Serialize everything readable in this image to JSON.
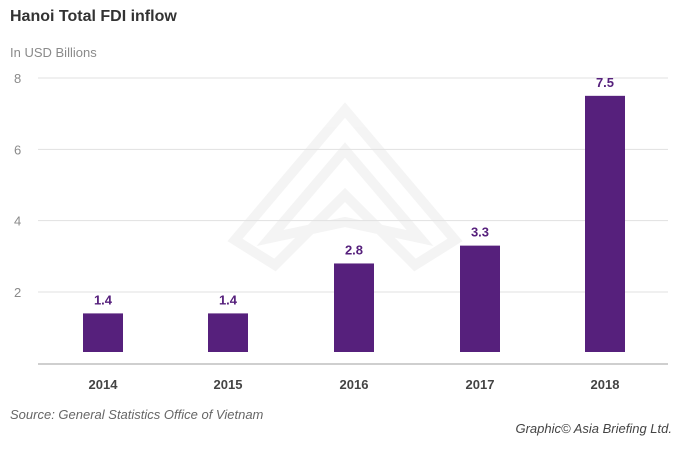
{
  "page": {
    "title": "Hanoi Total FDI inflow",
    "subtitle": "In USD Billions",
    "source": "Source: General Statistics Office of Vietnam",
    "credit": "Graphic© Asia Briefing Ltd."
  },
  "colors": {
    "bar": "#56207c",
    "label": "#56207c",
    "grid": "#e1e1e1",
    "axis": "#cfcfcf",
    "tick_text": "#8a8a8a",
    "category_text": "#444444"
  },
  "chart_data": {
    "type": "bar",
    "title": "Hanoi Total FDI inflow",
    "subtitle": "In USD Billions",
    "categories": [
      "2014",
      "2015",
      "2016",
      "2017",
      "2018"
    ],
    "values": [
      1.4,
      1.4,
      2.8,
      3.3,
      7.5
    ],
    "data_labels": [
      "1.4",
      "1.4",
      "2.8",
      "3.3",
      "7.5"
    ],
    "y_ticks": [
      2,
      4,
      6,
      8
    ],
    "ylim": [
      0,
      8
    ],
    "grid": true,
    "legend": "none"
  }
}
